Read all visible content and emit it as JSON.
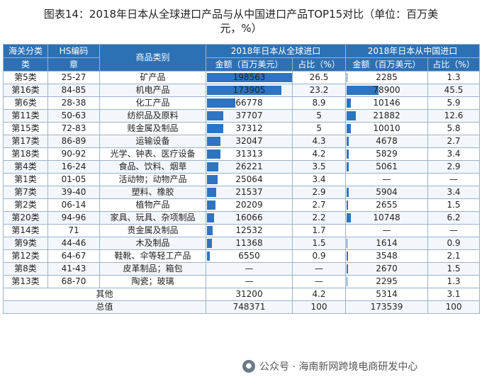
{
  "title": {
    "line1": "图表14：2018年日本从全球进口产品与从中国进口产品TOP15对比（单位：百万美",
    "line2": "元，%）"
  },
  "header": {
    "col_customs_line1": "海关分类",
    "col_customs_line2": "类",
    "col_hs_line1": "HS编码",
    "col_hs_line2": "章",
    "col_category": "商品类别",
    "group_global": "2018年日本从全球进口",
    "group_china": "2018年日本从中国进口",
    "amount": "金额（百万美元）",
    "share": "占比（%）"
  },
  "colors": {
    "header_bg": "#2d71b5",
    "bar": "#2e74c0"
  },
  "scale_max": 198563,
  "rows": [
    {
      "cls": "第5类",
      "hs": "25-27",
      "cat": "矿产品",
      "g_amt": "198563",
      "g_val": 198563,
      "g_share": "26.5",
      "c_amt": "2285",
      "c_val": 2285,
      "c_share": "1.3"
    },
    {
      "cls": "第16类",
      "hs": "84-85",
      "cat": "机电产品",
      "g_amt": "173905",
      "g_val": 173905,
      "g_share": "23.2",
      "c_amt": "78900",
      "c_val": 78900,
      "c_share": "45.5"
    },
    {
      "cls": "第6类",
      "hs": "28-38",
      "cat": "化工产品",
      "g_amt": "66778",
      "g_val": 66778,
      "g_share": "8.9",
      "c_amt": "10146",
      "c_val": 10146,
      "c_share": "5.9"
    },
    {
      "cls": "第11类",
      "hs": "50-63",
      "cat": "纺织品及原料",
      "g_amt": "37707",
      "g_val": 37707,
      "g_share": "5",
      "c_amt": "21882",
      "c_val": 21882,
      "c_share": "12.6"
    },
    {
      "cls": "第15类",
      "hs": "72-83",
      "cat": "贱金属及制品",
      "g_amt": "37312",
      "g_val": 37312,
      "g_share": "5",
      "c_amt": "10010",
      "c_val": 10010,
      "c_share": "5.8"
    },
    {
      "cls": "第17类",
      "hs": "86-89",
      "cat": "运输设备",
      "g_amt": "32047",
      "g_val": 32047,
      "g_share": "4.3",
      "c_amt": "4678",
      "c_val": 4678,
      "c_share": "2.7"
    },
    {
      "cls": "第18类",
      "hs": "90-92",
      "cat": "光学、钟表、医疗设备",
      "g_amt": "31313",
      "g_val": 31313,
      "g_share": "4.2",
      "c_amt": "5829",
      "c_val": 5829,
      "c_share": "3.4"
    },
    {
      "cls": "第4类",
      "hs": "16-24",
      "cat": "食品、饮料、烟草",
      "g_amt": "26221",
      "g_val": 26221,
      "g_share": "3.5",
      "c_amt": "5061",
      "c_val": 5061,
      "c_share": "2.9"
    },
    {
      "cls": "第1类",
      "hs": "01-05",
      "cat": "活动物；动物产品",
      "g_amt": "25064",
      "g_val": 25064,
      "g_share": "3.4",
      "c_amt": "—",
      "c_val": 0,
      "c_share": "—"
    },
    {
      "cls": "第7类",
      "hs": "39-40",
      "cat": "塑料、橡胶",
      "g_amt": "21537",
      "g_val": 21537,
      "g_share": "2.9",
      "c_amt": "5904",
      "c_val": 5904,
      "c_share": "3.4"
    },
    {
      "cls": "第2类",
      "hs": "06-14",
      "cat": "植物产品",
      "g_amt": "20209",
      "g_val": 20209,
      "g_share": "2.7",
      "c_amt": "2655",
      "c_val": 2655,
      "c_share": "1.5"
    },
    {
      "cls": "第20类",
      "hs": "94-96",
      "cat": "家具、玩具、杂项制品",
      "g_amt": "16066",
      "g_val": 16066,
      "g_share": "2.2",
      "c_amt": "10748",
      "c_val": 10748,
      "c_share": "6.2"
    },
    {
      "cls": "第14类",
      "hs": "71",
      "cat": "贵金属及制品",
      "g_amt": "12532",
      "g_val": 12532,
      "g_share": "1.7",
      "c_amt": "—",
      "c_val": 0,
      "c_share": "—"
    },
    {
      "cls": "第9类",
      "hs": "44-46",
      "cat": "木及制品",
      "g_amt": "11368",
      "g_val": 11368,
      "g_share": "1.5",
      "c_amt": "1614",
      "c_val": 1614,
      "c_share": "0.9"
    },
    {
      "cls": "第12类",
      "hs": "64-67",
      "cat": "鞋靴、伞等轻工产品",
      "g_amt": "6550",
      "g_val": 6550,
      "g_share": "0.9",
      "c_amt": "3548",
      "c_val": 3548,
      "c_share": "2.1"
    },
    {
      "cls": "第8类",
      "hs": "41-43",
      "cat": "皮革制品；箱包",
      "g_amt": "—",
      "g_val": 0,
      "g_share": "—",
      "c_amt": "2670",
      "c_val": 2670,
      "c_share": "1.5"
    },
    {
      "cls": "第13类",
      "hs": "68-70",
      "cat": "陶瓷；玻璃",
      "g_amt": "—",
      "g_val": 0,
      "g_share": "—",
      "c_amt": "2295",
      "c_val": 2295,
      "c_share": "1.3"
    }
  ],
  "others": {
    "label": "其他",
    "g_amt": "31200",
    "g_share": "4.2",
    "c_amt": "5314",
    "c_share": "3.1"
  },
  "total": {
    "label": "总值",
    "g_amt": "748371",
    "g_share": "100",
    "c_amt": "173539",
    "c_share": "100"
  },
  "watermark": {
    "icon": "wechat-icon",
    "text": "公众号 · 海南新网跨境电商研发中心"
  }
}
